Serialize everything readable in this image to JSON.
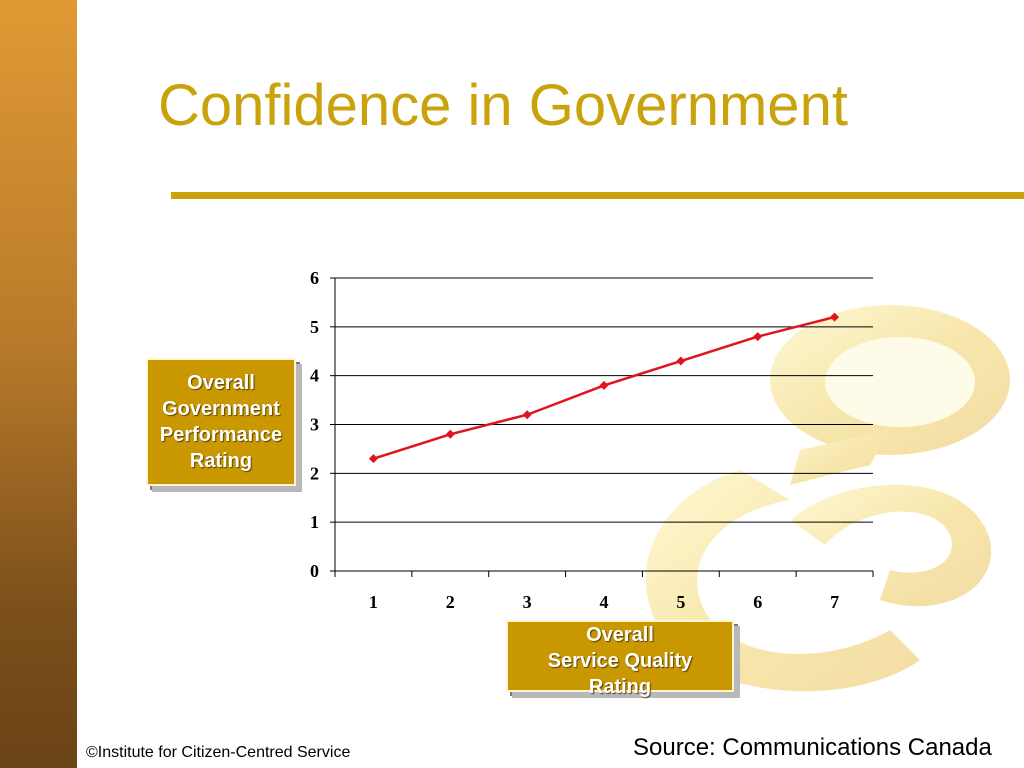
{
  "slide": {
    "title": "Confidence in Government",
    "footer_left": "©Institute for Citizen-Centred Service",
    "footer_right": "Source: Communications Canada",
    "accent_color": "#c9a20c",
    "sidebar_color": "#b87a2a"
  },
  "labels": {
    "y_line1": "Overall",
    "y_line2": "Government",
    "y_line3": "Performance",
    "y_line4": "Rating",
    "x_line1": "Overall",
    "x_line2": "Service Quality",
    "x_line3": "Rating"
  },
  "chart_data": {
    "type": "line",
    "x": [
      1,
      2,
      3,
      4,
      5,
      6,
      7
    ],
    "series": [
      {
        "values": [
          2.3,
          2.8,
          3.2,
          3.8,
          4.3,
          4.8,
          5.2
        ],
        "color": "#e0141e"
      }
    ],
    "xlabel": "Overall Service Quality Rating",
    "ylabel": "Overall Government Performance Rating",
    "ylim": [
      0,
      6
    ],
    "yticks": [
      0,
      1,
      2,
      3,
      4,
      5,
      6
    ],
    "grid": true,
    "legend": "none"
  }
}
